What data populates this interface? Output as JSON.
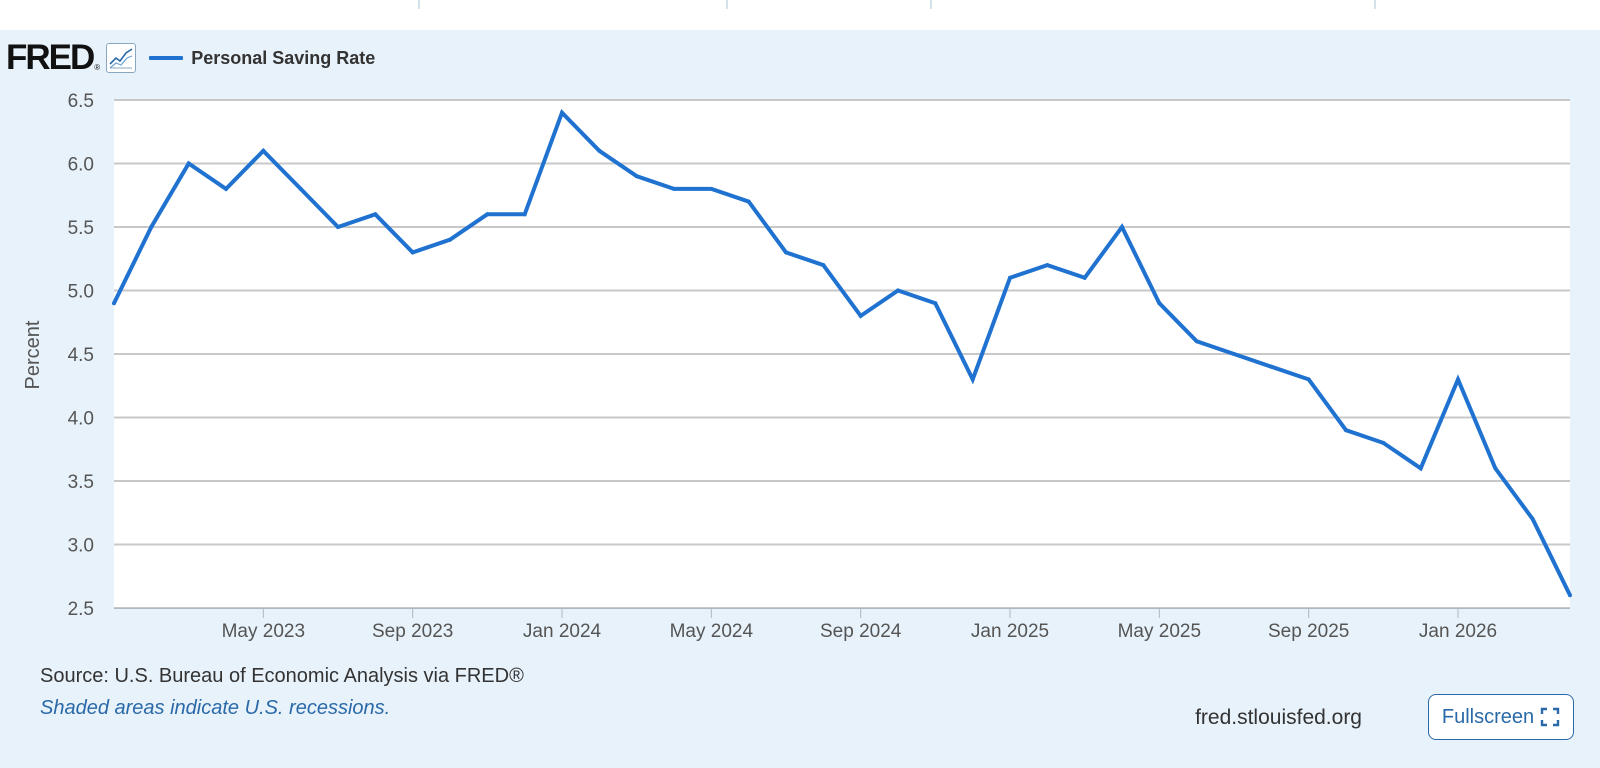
{
  "header": {
    "logo_text": "FRED",
    "logo_mark": "®",
    "graph_icon": "line-graph-icon",
    "series_label": "Personal Saving Rate"
  },
  "footer": {
    "source": "Source: U.S. Bureau of Economic Analysis via FRED®",
    "recession_note": "Shaded areas indicate U.S. recessions.",
    "site": "fred.stlouisfed.org",
    "fullscreen_label": "Fullscreen",
    "fullscreen_icon": "expand-icon"
  },
  "colors": {
    "line": "#1f72d0",
    "panel": "#e8f2fa",
    "grid": "#c8c8c8",
    "link": "#2a69a8"
  },
  "chart_data": {
    "type": "line",
    "title": "",
    "xlabel": "",
    "ylabel": "Percent",
    "ylim": [
      2.5,
      6.5
    ],
    "grid": true,
    "legend": "top-left",
    "x_range": [
      "2023-01",
      "2026-04"
    ],
    "yticks": [
      "2.5",
      "3.0",
      "3.5",
      "4.0",
      "4.5",
      "5.0",
      "5.5",
      "6.0",
      "6.5"
    ],
    "xticks": [
      {
        "label": "May 2023",
        "date": "2023-05"
      },
      {
        "label": "Sep 2023",
        "date": "2023-09"
      },
      {
        "label": "Jan 2024",
        "date": "2024-01"
      },
      {
        "label": "May 2024",
        "date": "2024-05"
      },
      {
        "label": "Sep 2024",
        "date": "2024-09"
      },
      {
        "label": "Jan 2025",
        "date": "2025-01"
      },
      {
        "label": "May 2025",
        "date": "2025-05"
      },
      {
        "label": "Sep 2025",
        "date": "2025-09"
      },
      {
        "label": "Jan 2026",
        "date": "2026-01"
      }
    ],
    "series": [
      {
        "name": "Personal Saving Rate",
        "color": "#1f72d0",
        "x": [
          "2023-01",
          "2023-02",
          "2023-03",
          "2023-04",
          "2023-05",
          "2023-06",
          "2023-07",
          "2023-08",
          "2023-09",
          "2023-10",
          "2023-11",
          "2023-12",
          "2024-01",
          "2024-02",
          "2024-03",
          "2024-04",
          "2024-05",
          "2024-06",
          "2024-07",
          "2024-08",
          "2024-09",
          "2024-10",
          "2024-11",
          "2024-12",
          "2025-01",
          "2025-02",
          "2025-03",
          "2025-04",
          "2025-05",
          "2025-06",
          "2025-07",
          "2025-08",
          "2025-09",
          "2025-10",
          "2025-11",
          "2025-12",
          "2026-01",
          "2026-02",
          "2026-03",
          "2026-04"
        ],
        "values": [
          4.9,
          5.5,
          6.0,
          5.8,
          6.1,
          5.8,
          5.5,
          5.6,
          5.3,
          5.4,
          5.6,
          5.6,
          6.4,
          6.1,
          5.9,
          5.8,
          5.8,
          5.7,
          5.3,
          5.2,
          4.8,
          5.0,
          4.9,
          4.3,
          5.1,
          5.2,
          5.1,
          5.5,
          4.9,
          4.6,
          4.5,
          4.4,
          4.3,
          3.9,
          3.8,
          3.6,
          4.3,
          3.6,
          3.2,
          2.6
        ]
      }
    ]
  }
}
